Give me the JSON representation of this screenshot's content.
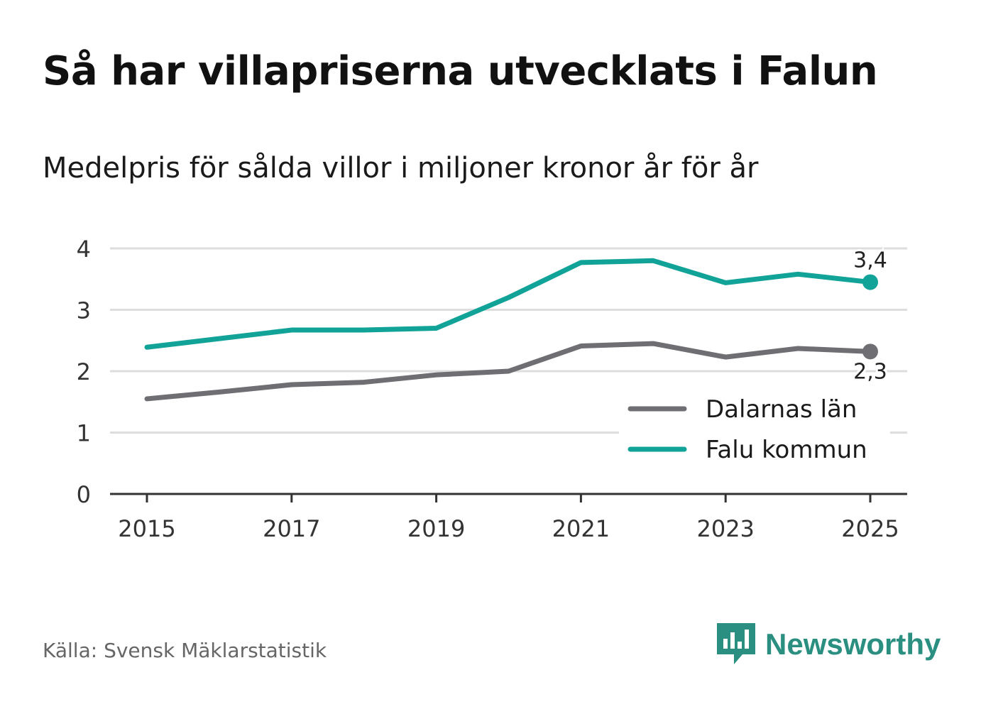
{
  "title": "Så har villapriserna utvecklats i Falun",
  "subtitle": "Medelpris för sålda villor i miljoner kronor år för år",
  "source": "Källa: Svensk Mäklarstatistik",
  "brand": {
    "name": "Newsworthy",
    "icon": "newsworthy-logo-icon",
    "color": "#2a8f80"
  },
  "chart_data": {
    "type": "line",
    "x": [
      2015,
      2016,
      2017,
      2018,
      2019,
      2020,
      2021,
      2022,
      2023,
      2024,
      2025
    ],
    "xticks": [
      "2015",
      "2017",
      "2019",
      "2021",
      "2023",
      "2025"
    ],
    "yticks": [
      "0",
      "1",
      "2",
      "3",
      "4"
    ],
    "ylim": [
      0,
      4
    ],
    "grid": true,
    "legend_position": "bottom-right",
    "series": [
      {
        "name": "Dalarnas län",
        "color": "#6e6e73",
        "values": [
          1.55,
          1.66,
          1.78,
          1.82,
          1.94,
          2.0,
          2.41,
          2.45,
          2.23,
          2.37,
          2.32
        ],
        "end_label": "2,3"
      },
      {
        "name": "Falu kommun",
        "color": "#12a398",
        "values": [
          2.39,
          2.53,
          2.67,
          2.67,
          2.7,
          3.2,
          3.77,
          3.8,
          3.44,
          3.58,
          3.45
        ],
        "end_label": "3,4"
      }
    ]
  }
}
